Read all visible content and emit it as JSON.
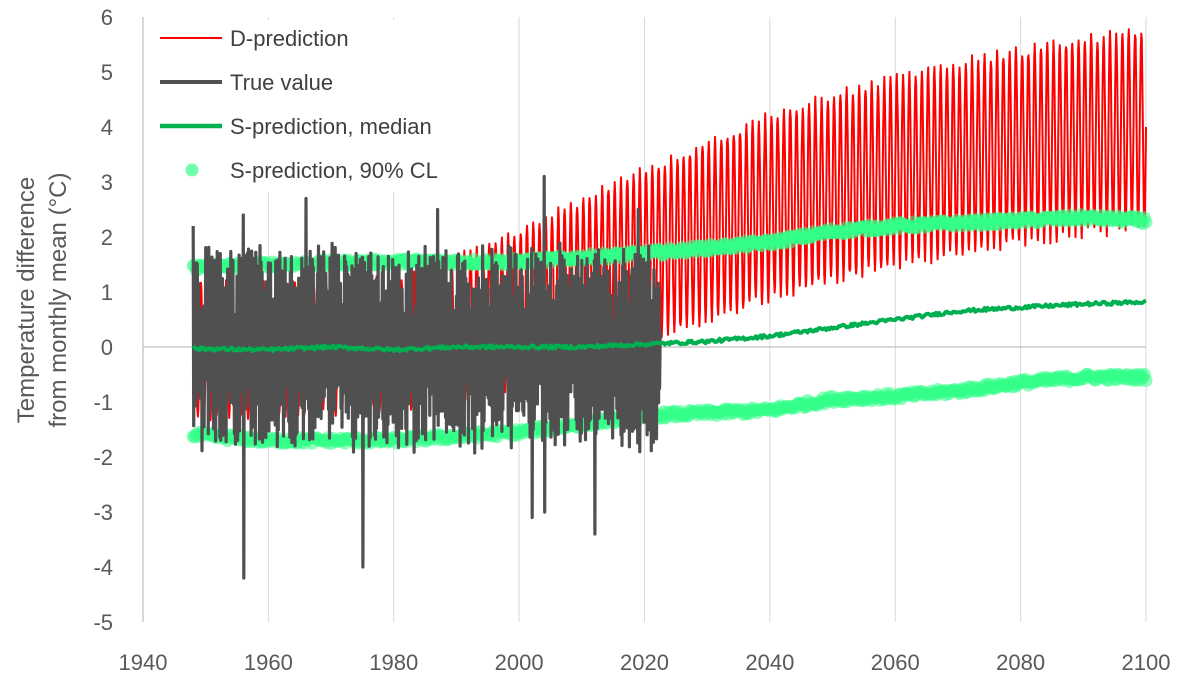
{
  "chart_data": {
    "type": "line",
    "title": "",
    "xlabel": "",
    "ylabel_lines": [
      "Temperature difference",
      "from monthly mean (°C)"
    ],
    "xlim": [
      1940,
      2100
    ],
    "ylim": [
      -5,
      6
    ],
    "xticks": [
      1940,
      1960,
      1980,
      2000,
      2020,
      2040,
      2060,
      2080,
      2100
    ],
    "yticks": [
      -5,
      -4,
      -3,
      -2,
      -1,
      0,
      1,
      2,
      3,
      4,
      5,
      6
    ],
    "grid": "vertical",
    "legend_position": "top-left",
    "series": [
      {
        "name": "D-prediction",
        "kind": "line",
        "color": "#ff0000",
        "x_start": 1948,
        "x_end": 2100,
        "upper_envelope": [
          [
            1948,
            1.2
          ],
          [
            1980,
            1.3
          ],
          [
            2000,
            2.2
          ],
          [
            2020,
            3.3
          ],
          [
            2040,
            4.3
          ],
          [
            2060,
            5.0
          ],
          [
            2080,
            5.5
          ],
          [
            2100,
            5.9
          ]
        ],
        "lower_envelope": [
          [
            1948,
            -1.4
          ],
          [
            1980,
            -1.2
          ],
          [
            2000,
            -0.8
          ],
          [
            2022,
            0.1
          ],
          [
            2040,
            0.8
          ],
          [
            2060,
            1.4
          ],
          [
            2080,
            1.8
          ],
          [
            2100,
            2.1
          ]
        ]
      },
      {
        "name": "True value",
        "kind": "line",
        "color": "#505050",
        "x_start": 1948,
        "x_end": 2022.5,
        "peaks": [
          [
            1948,
            2.2
          ],
          [
            1956,
            2.4
          ],
          [
            1966,
            2.7
          ],
          [
            1987,
            2.5
          ],
          [
            2004,
            3.1
          ],
          [
            2019,
            2.5
          ]
        ],
        "troughs": [
          [
            1956,
            -4.2
          ],
          [
            1975,
            -4.0
          ],
          [
            2002,
            -3.1
          ],
          [
            2004,
            -3.0
          ],
          [
            2012,
            -3.4
          ]
        ]
      },
      {
        "name": "S-prediction, median",
        "kind": "line",
        "color": "#00b050",
        "points": [
          [
            1948,
            -0.03
          ],
          [
            1960,
            -0.05
          ],
          [
            1970,
            0.0
          ],
          [
            1980,
            -0.05
          ],
          [
            1990,
            0.0
          ],
          [
            2000,
            0.0
          ],
          [
            2010,
            0.0
          ],
          [
            2020,
            0.05
          ],
          [
            2030,
            0.1
          ],
          [
            2040,
            0.2
          ],
          [
            2050,
            0.35
          ],
          [
            2060,
            0.5
          ],
          [
            2070,
            0.65
          ],
          [
            2080,
            0.72
          ],
          [
            2090,
            0.78
          ],
          [
            2100,
            0.82
          ]
        ]
      },
      {
        "name": "S-prediction, 90% CL",
        "kind": "scatter",
        "color": "#33ff88",
        "upper": [
          [
            1948,
            1.45
          ],
          [
            1960,
            1.5
          ],
          [
            1980,
            1.55
          ],
          [
            2000,
            1.55
          ],
          [
            2020,
            1.7
          ],
          [
            2030,
            1.8
          ],
          [
            2040,
            1.9
          ],
          [
            2050,
            2.1
          ],
          [
            2060,
            2.2
          ],
          [
            2070,
            2.25
          ],
          [
            2080,
            2.3
          ],
          [
            2090,
            2.35
          ],
          [
            2100,
            2.3
          ]
        ],
        "lower": [
          [
            1948,
            -1.6
          ],
          [
            1960,
            -1.7
          ],
          [
            1980,
            -1.7
          ],
          [
            2000,
            -1.55
          ],
          [
            2010,
            -1.4
          ],
          [
            2020,
            -1.25
          ],
          [
            2030,
            -1.2
          ],
          [
            2040,
            -1.15
          ],
          [
            2050,
            -0.95
          ],
          [
            2060,
            -0.9
          ],
          [
            2070,
            -0.8
          ],
          [
            2080,
            -0.65
          ],
          [
            2090,
            -0.55
          ],
          [
            2100,
            -0.55
          ]
        ]
      }
    ]
  }
}
